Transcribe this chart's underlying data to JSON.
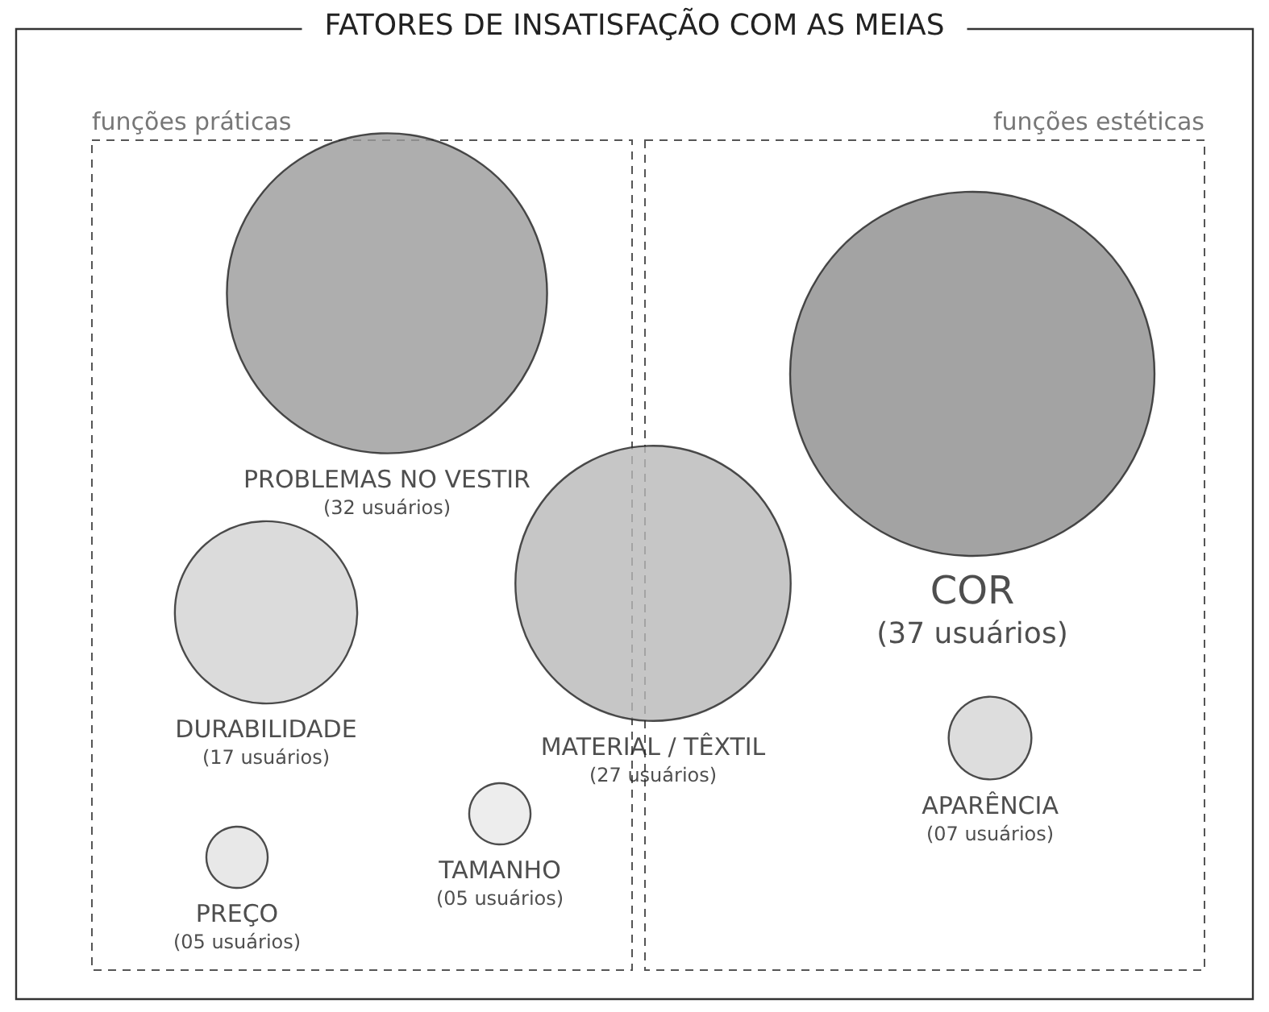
{
  "chart_data": {
    "type": "other",
    "title": "FATORES DE INSATISFAÇÃO COM AS MEIAS",
    "categories": [
      "PROBLEMAS NO VESTIR",
      "DURABILIDADE",
      "MATERIAL / TÊXTIL",
      "PREÇO",
      "TAMANHO",
      "COR",
      "APARÊNCIA"
    ],
    "series": [
      {
        "name": "funções práticas",
        "colors": [
          "#9a9a9a",
          "#d2d2d2",
          "#b8b8b8",
          "#e2e2e2",
          "#e8e8e8",
          null,
          null
        ],
        "values": [
          32,
          17,
          27,
          5,
          5,
          null,
          null
        ],
        "value_labels": [
          "(32 usuários)",
          "(17 usuários)",
          "(27 usuários)",
          "(05 usuários)",
          "(05 usuários)",
          null,
          null
        ]
      },
      {
        "name": "funções estéticas",
        "colors": [
          null,
          null,
          null,
          null,
          null,
          "#8c8c8c",
          "#d4d4d4"
        ],
        "values": [
          null,
          null,
          null,
          null,
          null,
          37,
          7
        ],
        "value_labels": [
          null,
          null,
          null,
          null,
          null,
          "(37 usuários)",
          "(07 usuários)"
        ]
      }
    ],
    "legend": false
  }
}
